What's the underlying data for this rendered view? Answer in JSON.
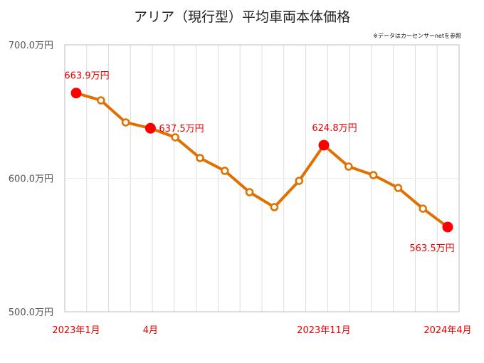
{
  "chart_data": {
    "type": "line",
    "title": "アリア（現行型）平均車両本体価格",
    "note": "※データはカーセンサーnetを参照",
    "xlabel": "",
    "ylabel": "",
    "ylim": [
      500,
      700
    ],
    "yticks": [
      {
        "value": 700,
        "label": "700.0万円"
      },
      {
        "value": 600,
        "label": "600.0万円"
      },
      {
        "value": 500,
        "label": "500.0万円"
      }
    ],
    "x": [
      "2023-01",
      "2023-02",
      "2023-03",
      "2023-04",
      "2023-05",
      "2023-06",
      "2023-07",
      "2023-08",
      "2023-09",
      "2023-10",
      "2023-11",
      "2023-12",
      "2024-01",
      "2024-02",
      "2024-03",
      "2024-04"
    ],
    "xtick_labels": [
      {
        "index": 0,
        "label": "2023年1月"
      },
      {
        "index": 3,
        "label": "4月"
      },
      {
        "index": 10,
        "label": "2023年11月"
      },
      {
        "index": 15,
        "label": "2024年4月"
      }
    ],
    "series": [
      {
        "name": "平均車両本体価格",
        "color": "#e07000",
        "values": [
          663.9,
          658.4,
          641.9,
          637.5,
          630.7,
          615.2,
          605.6,
          589.6,
          578.4,
          598.1,
          624.8,
          608.8,
          602.4,
          592.8,
          577.3,
          563.5
        ]
      }
    ],
    "highlights": [
      {
        "index": 0,
        "label": "663.9万円",
        "pos": "above"
      },
      {
        "index": 3,
        "label": "637.5万円",
        "pos": "right"
      },
      {
        "index": 10,
        "label": "624.8万円",
        "pos": "above"
      },
      {
        "index": 15,
        "label": "563.5万円",
        "pos": "below"
      }
    ],
    "highlight_color": "#ff0000",
    "grid": true
  }
}
